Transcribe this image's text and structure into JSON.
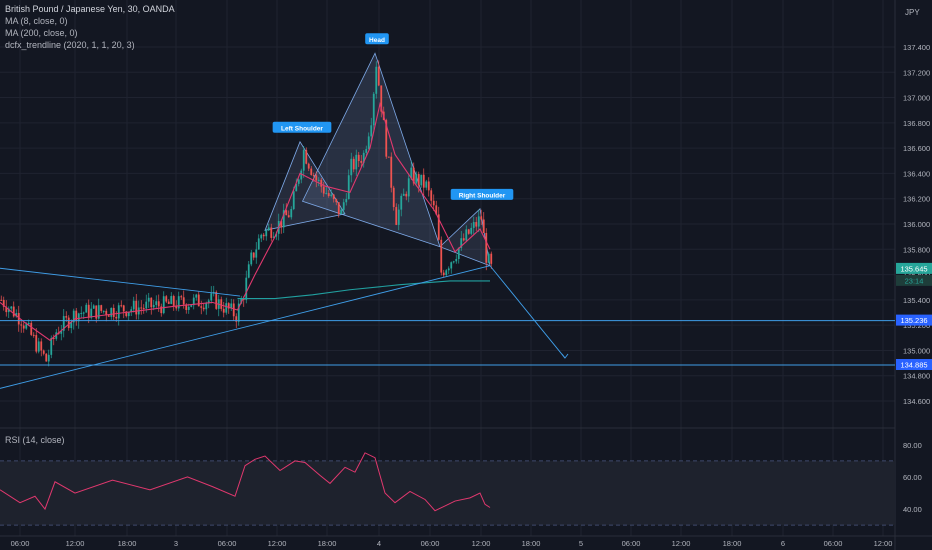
{
  "header": {
    "symbol": "British Pound / Japanese Yen, 30, OANDA",
    "indicators": [
      "MA (8, close, 0)",
      "MA (200, close, 0)",
      "dcfx_trendline (2020, 1, 1, 20, 3)"
    ],
    "currency": "JPY"
  },
  "rsi_panel": {
    "title": "RSI (14, close)"
  },
  "badges": {
    "last_price": "135.645",
    "countdown": "23:14",
    "level_1": "135.236",
    "level_2": "134.885"
  },
  "chart_data": [
    {
      "type": "candlestick",
      "symbol": "GBPJPY",
      "y_axis_ticks": [
        "137.400",
        "137.200",
        "137.000",
        "136.800",
        "136.600",
        "136.400",
        "136.200",
        "136.000",
        "135.800",
        "135.600",
        "135.400",
        "135.200",
        "135.000",
        "134.800",
        "134.600"
      ],
      "ylim": [
        134.45,
        137.55
      ],
      "x_axis_ticks": [
        "06:00",
        "12:00",
        "18:00",
        "3",
        "06:00",
        "12:00",
        "18:00",
        "4",
        "06:00",
        "12:00",
        "18:00",
        "5",
        "06:00",
        "12:00",
        "18:00",
        "6",
        "06:00",
        "12:00"
      ],
      "key_points": [
        {
          "label": "Left Shoulder",
          "time_index": 120,
          "price": 136.65
        },
        {
          "label": "Head",
          "time_index": 150,
          "price": 137.35
        },
        {
          "label": "Right Shoulder",
          "time_index": 192,
          "price": 136.12
        }
      ],
      "close_path": [
        [
          0,
          135.4
        ],
        [
          8,
          135.25
        ],
        [
          14,
          135.05
        ],
        [
          18,
          134.92
        ],
        [
          22,
          135.15
        ],
        [
          30,
          135.3
        ],
        [
          45,
          135.32
        ],
        [
          60,
          135.35
        ],
        [
          75,
          135.38
        ],
        [
          85,
          135.4
        ],
        [
          94,
          135.28
        ],
        [
          97,
          135.45
        ],
        [
          100,
          135.72
        ],
        [
          104,
          135.92
        ],
        [
          110,
          135.98
        ],
        [
          116,
          136.1
        ],
        [
          121,
          136.58
        ],
        [
          126,
          136.35
        ],
        [
          130,
          136.25
        ],
        [
          136,
          136.08
        ],
        [
          140,
          136.45
        ],
        [
          145,
          136.55
        ],
        [
          148,
          136.85
        ],
        [
          150,
          137.28
        ],
        [
          154,
          136.6
        ],
        [
          158,
          136.05
        ],
        [
          164,
          136.38
        ],
        [
          170,
          136.3
        ],
        [
          174,
          136.05
        ],
        [
          176,
          135.62
        ],
        [
          180,
          135.72
        ],
        [
          186,
          135.9
        ],
        [
          192,
          136.05
        ],
        [
          194,
          135.75
        ],
        [
          196,
          135.645
        ]
      ],
      "ma8_path": [
        [
          0,
          135.38
        ],
        [
          10,
          135.22
        ],
        [
          20,
          135.08
        ],
        [
          30,
          135.25
        ],
        [
          50,
          135.3
        ],
        [
          70,
          135.35
        ],
        [
          85,
          135.38
        ],
        [
          95,
          135.32
        ],
        [
          102,
          135.6
        ],
        [
          110,
          135.9
        ],
        [
          120,
          136.4
        ],
        [
          130,
          136.3
        ],
        [
          140,
          136.25
        ],
        [
          148,
          136.6
        ],
        [
          152,
          136.95
        ],
        [
          158,
          136.55
        ],
        [
          166,
          136.32
        ],
        [
          174,
          136.1
        ],
        [
          182,
          135.78
        ],
        [
          192,
          135.96
        ],
        [
          196,
          135.8
        ]
      ],
      "ma200_path": [
        [
          95,
          135.41
        ],
        [
          110,
          135.41
        ],
        [
          125,
          135.44
        ],
        [
          140,
          135.48
        ],
        [
          160,
          135.52
        ],
        [
          180,
          135.55
        ],
        [
          196,
          135.55
        ]
      ],
      "trendlines": [
        {
          "from": [
            0,
            135.65
          ],
          "to": [
            96,
            135.43
          ]
        },
        {
          "from": [
            0,
            134.7
          ],
          "to": [
            196,
            135.67
          ]
        },
        {
          "from": [
            196,
            135.67
          ],
          "to": [
            226,
            134.94
          ]
        }
      ],
      "horizontal_levels": [
        135.236,
        134.885
      ],
      "last_price": 135.645
    },
    {
      "type": "line",
      "name": "RSI (14, close)",
      "y_axis_ticks": [
        "80.00",
        "60.00",
        "40.00"
      ],
      "ylim": [
        27,
        83
      ],
      "bands": [
        70,
        30
      ],
      "path": [
        [
          0,
          52
        ],
        [
          8,
          44
        ],
        [
          14,
          48
        ],
        [
          18,
          40
        ],
        [
          22,
          57
        ],
        [
          30,
          50
        ],
        [
          45,
          58
        ],
        [
          60,
          52
        ],
        [
          75,
          60
        ],
        [
          85,
          54
        ],
        [
          94,
          48
        ],
        [
          98,
          67
        ],
        [
          102,
          71
        ],
        [
          106,
          73
        ],
        [
          112,
          64
        ],
        [
          118,
          70
        ],
        [
          122,
          69
        ],
        [
          128,
          61
        ],
        [
          132,
          56
        ],
        [
          138,
          66
        ],
        [
          142,
          63
        ],
        [
          146,
          75
        ],
        [
          150,
          72
        ],
        [
          154,
          50
        ],
        [
          158,
          44
        ],
        [
          164,
          51
        ],
        [
          170,
          46
        ],
        [
          174,
          39
        ],
        [
          178,
          42
        ],
        [
          182,
          45
        ],
        [
          188,
          47
        ],
        [
          192,
          50
        ],
        [
          194,
          43
        ],
        [
          196,
          41
        ]
      ]
    }
  ]
}
